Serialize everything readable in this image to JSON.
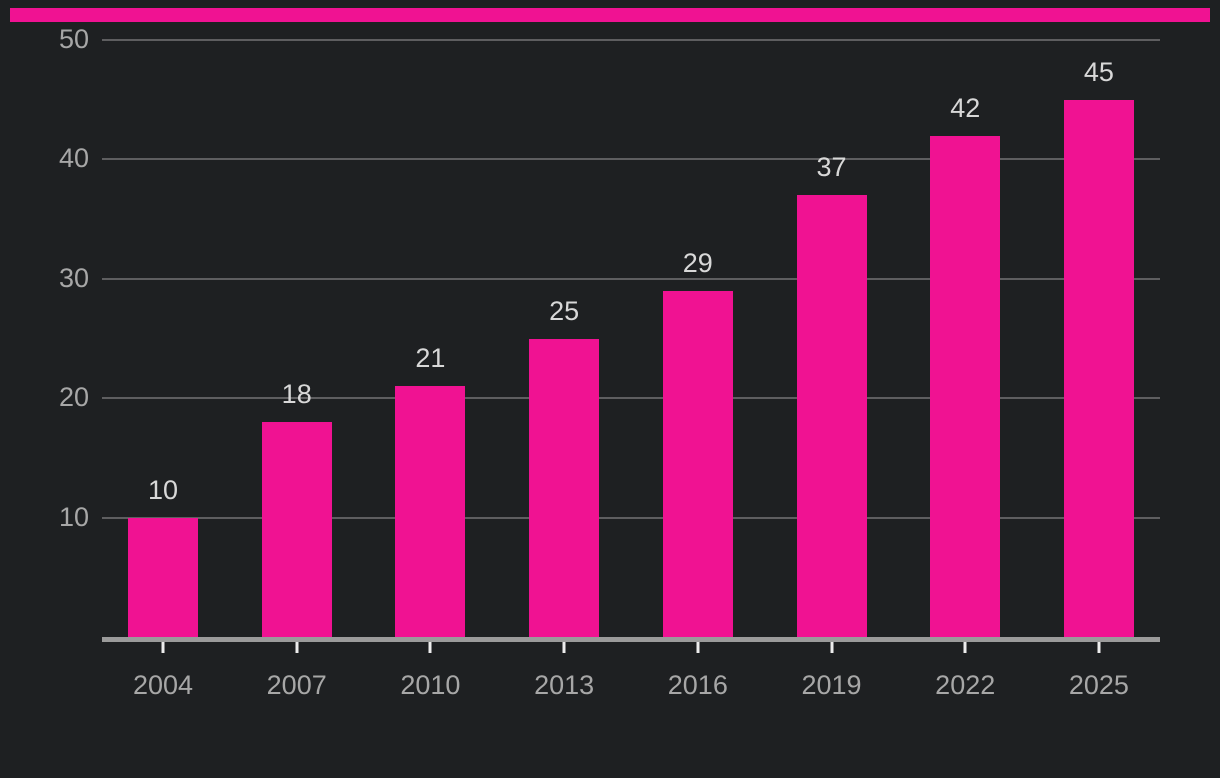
{
  "chart_data": {
    "type": "bar",
    "categories": [
      "2004",
      "2007",
      "2010",
      "2013",
      "2016",
      "2019",
      "2022",
      "2025"
    ],
    "values": [
      10,
      18,
      21,
      25,
      29,
      37,
      42,
      45
    ],
    "value_labels": [
      "10",
      "18",
      "21",
      "25",
      "29",
      "37",
      "42",
      "45"
    ],
    "title": "",
    "xlabel": "",
    "ylabel": "",
    "ylim": [
      0,
      50
    ],
    "yticks": [
      10,
      20,
      30,
      40,
      50
    ],
    "grid": true,
    "legend": false
  },
  "colors": {
    "background": "#1E2022",
    "bar": "#F01292",
    "accent_stripe": "#F01292",
    "gridline": "#5E5E60",
    "axis_line": "#9B9B9B",
    "tick_mark": "#EDEDED",
    "axis_label": "#A7A7A7",
    "value_label": "#D8D8D8"
  }
}
